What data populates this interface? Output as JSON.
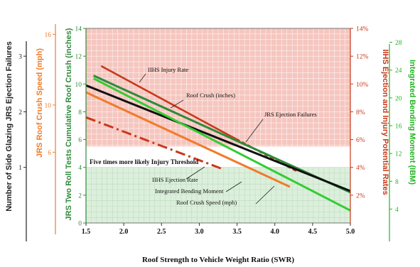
{
  "chart_data": {
    "type": "line",
    "xlabel": "Roof Strength to Vehicle Weight Ratio (SWR)",
    "xlim": [
      1.5,
      5.0
    ],
    "xticks": [
      "1.5",
      "2.0",
      "2.5",
      "3.0",
      "3.5",
      "4.0",
      "4.5",
      "5.0"
    ],
    "grid": "on",
    "threshold_label": "Five times more likely Injury Threshold",
    "axes": [
      {
        "id": "ejection",
        "label": "Number of Side Glazing JRS Ejection Failures",
        "side": "left",
        "color": "#222222",
        "range": [
          0,
          3.5
        ],
        "ticks": [
          "1",
          "2",
          "3"
        ]
      },
      {
        "id": "speed",
        "label": "JRS  Roof Crush Speed (mph)",
        "side": "left",
        "color": "#f07c2b",
        "range": [
          0,
          16.5
        ],
        "ticks": [
          "6",
          "10",
          "16"
        ]
      },
      {
        "id": "crush",
        "label": "JRS Two Roll Tests Cumulative Roof Crush (inches)",
        "side": "left",
        "color": "#2e8b3a",
        "range": [
          0,
          14
        ],
        "ticks": [
          "0",
          "2",
          "4",
          "6",
          "8",
          "10",
          "12",
          "14"
        ]
      },
      {
        "id": "rate",
        "label": "IIHS Ejection and Injury Potential Rates",
        "side": "right",
        "color": "#c8391b",
        "range": [
          0,
          14
        ],
        "ticks": [
          "2%",
          "4%",
          "6%",
          "8%",
          "10%",
          "12%",
          "14%"
        ]
      },
      {
        "id": "ibm",
        "label": "Integrated Bending Moment (IBM)",
        "side": "right",
        "color": "#22b422",
        "range": [
          2,
          30
        ],
        "ticks": [
          "4",
          "8",
          "12",
          "16",
          "20",
          "24",
          "28"
        ]
      }
    ],
    "series": [
      {
        "name": "IIHS Injury Rate",
        "axis": "rate",
        "color": "#c8391b",
        "style": "solid-then-dotted",
        "x": [
          1.7,
          3.5,
          4.3
        ],
        "y": [
          11.3,
          6.0,
          3.7
        ]
      },
      {
        "name": "Roof Crush (inches)",
        "axis": "crush",
        "color": "#2e8b3a",
        "style": "solid",
        "x": [
          1.6,
          5.0
        ],
        "y": [
          10.6,
          2.2
        ]
      },
      {
        "name": "JRS Ejection Failures",
        "axis": "crush",
        "color": "#111111",
        "style": "solid",
        "x": [
          1.5,
          5.0
        ],
        "y": [
          9.9,
          2.3
        ]
      },
      {
        "name": "IIHS Ejection Rate",
        "axis": "rate",
        "color": "#c8391b",
        "style": "dash-dot",
        "x": [
          1.5,
          3.3
        ],
        "y": [
          7.6,
          3.9
        ]
      },
      {
        "name": "Integrated Bending Moment",
        "axis": "crush",
        "color": "#33cc33",
        "style": "solid",
        "x": [
          1.6,
          5.0
        ],
        "y": [
          10.4,
          0.9
        ]
      },
      {
        "name": "Roof Crush Speed (mph)",
        "axis": "crush",
        "color": "#f07c2b",
        "style": "solid",
        "x": [
          1.5,
          4.2
        ],
        "y": [
          9.4,
          2.6
        ]
      }
    ]
  }
}
